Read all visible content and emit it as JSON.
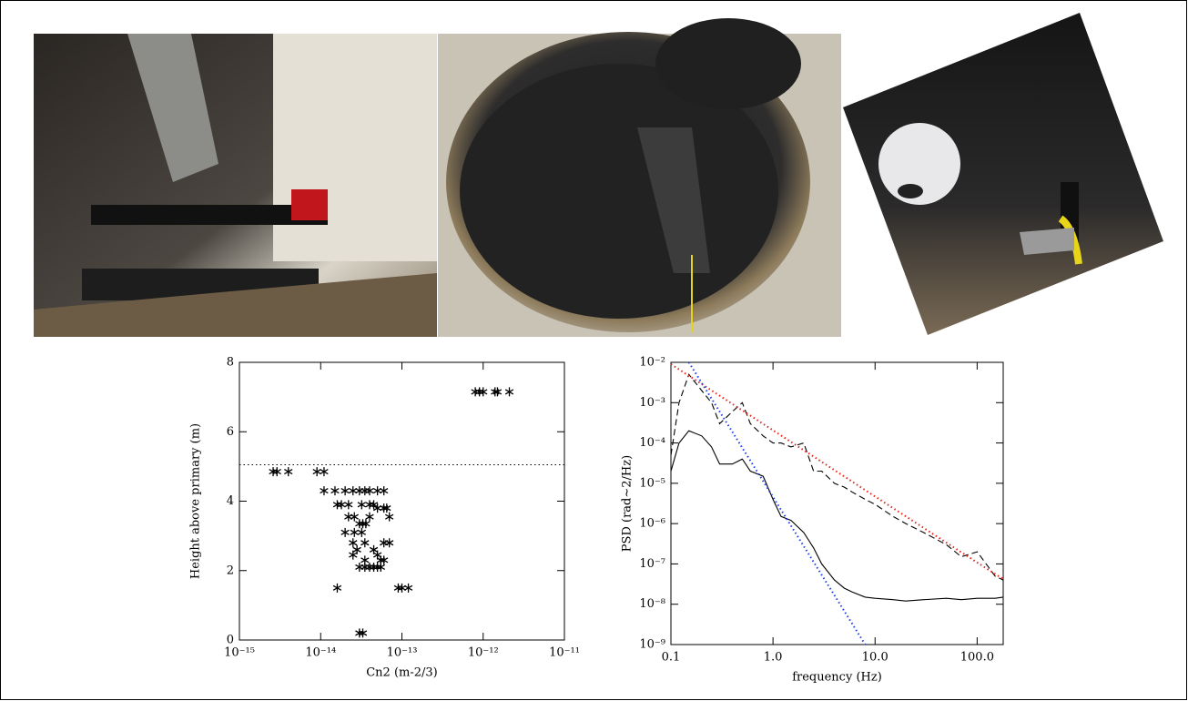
{
  "chart_data": [
    {
      "type": "scatter",
      "xlabel": "Cn2 (m-2/3)",
      "ylabel": "Height above primary (m)",
      "xlog": true,
      "xlim": [
        1e-15,
        1e-11
      ],
      "xticks": [
        {
          "value": 1e-15,
          "label": "10⁻¹⁵"
        },
        {
          "value": 1e-14,
          "label": "10⁻¹⁴"
        },
        {
          "value": 1e-13,
          "label": "10⁻¹³"
        },
        {
          "value": 1e-12,
          "label": "10⁻¹²"
        },
        {
          "value": 1e-11,
          "label": "10⁻¹¹"
        }
      ],
      "ylim": [
        0,
        8
      ],
      "yticks": [
        0,
        2,
        4,
        6,
        8
      ],
      "hline": 5.05,
      "color": "#000000",
      "x": [
        8e-13,
        9e-13,
        1e-12,
        1.4e-12,
        1.5e-12,
        2.1e-12,
        2.6e-15,
        2.9e-15,
        4e-15,
        9e-15,
        1.1e-14,
        1.1e-14,
        1.5e-14,
        2e-14,
        2.5e-14,
        3e-14,
        3.5e-14,
        4e-14,
        5e-14,
        6e-14,
        1.6e-14,
        1.8e-14,
        2.2e-14,
        3.2e-14,
        4e-14,
        4.5e-14,
        5e-14,
        6e-14,
        6.5e-14,
        2.2e-14,
        2.6e-14,
        4e-14,
        7e-14,
        3e-14,
        3.3e-14,
        3.6e-14,
        2e-14,
        2.6e-14,
        3.2e-14,
        2.5e-14,
        3.5e-14,
        6e-14,
        7e-14,
        2.8e-14,
        4.5e-14,
        2.5e-14,
        5e-14,
        3.5e-14,
        5.5e-14,
        6e-14,
        3e-14,
        3.5e-14,
        4e-14,
        4.5e-14,
        5e-14,
        5.5e-14,
        1.6e-14,
        9e-14,
        1e-13,
        1.2e-13,
        3e-14,
        3.3e-14
      ],
      "values": [
        7.15,
        7.15,
        7.15,
        7.15,
        7.15,
        7.15,
        4.85,
        4.85,
        4.85,
        4.85,
        4.85,
        4.3,
        4.3,
        4.3,
        4.3,
        4.3,
        4.3,
        4.3,
        4.3,
        4.3,
        3.9,
        3.9,
        3.9,
        3.9,
        3.9,
        3.9,
        3.8,
        3.8,
        3.8,
        3.55,
        3.55,
        3.55,
        3.55,
        3.35,
        3.35,
        3.35,
        3.1,
        3.1,
        3.1,
        2.8,
        2.8,
        2.8,
        2.8,
        2.6,
        2.6,
        2.45,
        2.45,
        2.3,
        2.3,
        2.3,
        2.1,
        2.1,
        2.1,
        2.1,
        2.1,
        2.1,
        1.5,
        1.5,
        1.5,
        1.5,
        0.2,
        0.2
      ]
    },
    {
      "type": "line",
      "xlabel": "frequency (Hz)",
      "ylabel": "PSD (rad~2/Hz)",
      "xlog": true,
      "ylog": true,
      "xlim": [
        0.1,
        180
      ],
      "xticks": [
        {
          "value": 0.1,
          "label": "0.1"
        },
        {
          "value": 1,
          "label": "1.0"
        },
        {
          "value": 10,
          "label": "10.0"
        },
        {
          "value": 100,
          "label": "100.0"
        }
      ],
      "ylim": [
        1e-09,
        0.01
      ],
      "yticks": [
        {
          "value": 1e-09,
          "label": "10⁻⁹"
        },
        {
          "value": 1e-08,
          "label": "10⁻⁸"
        },
        {
          "value": 1e-07,
          "label": "10⁻⁷"
        },
        {
          "value": 1e-06,
          "label": "10⁻⁶"
        },
        {
          "value": 1e-05,
          "label": "10⁻⁵"
        },
        {
          "value": 0.0001,
          "label": "10⁻⁴"
        },
        {
          "value": 0.001,
          "label": "10⁻³"
        },
        {
          "value": 0.01,
          "label": "10⁻²"
        }
      ],
      "series": [
        {
          "color": "#000000",
          "dash": "solid",
          "x": [
            0.1,
            0.12,
            0.15,
            0.2,
            0.25,
            0.3,
            0.4,
            0.5,
            0.6,
            0.8,
            1,
            1.2,
            1.5,
            2,
            2.5,
            3,
            4,
            5,
            6,
            8,
            10,
            15,
            20,
            30,
            50,
            70,
            100,
            150,
            180
          ],
          "values": [
            2e-05,
            0.0001,
            0.0002,
            0.00015,
            8e-05,
            3e-05,
            3e-05,
            4e-05,
            2e-05,
            1.5e-05,
            4e-06,
            1.5e-06,
            1.2e-06,
            6e-07,
            2.5e-07,
            1e-07,
            4e-08,
            2.5e-08,
            2e-08,
            1.5e-08,
            1.4e-08,
            1.3e-08,
            1.2e-08,
            1.3e-08,
            1.4e-08,
            1.3e-08,
            1.4e-08,
            1.4e-08,
            1.5e-08
          ]
        },
        {
          "color": "#000000",
          "dash": "dashed",
          "x": [
            0.1,
            0.12,
            0.15,
            0.2,
            0.25,
            0.3,
            0.4,
            0.5,
            0.6,
            0.8,
            1,
            1.2,
            1.5,
            2,
            2.5,
            3,
            4,
            5,
            6,
            8,
            10,
            15,
            20,
            30,
            50,
            70,
            100,
            150,
            180
          ],
          "values": [
            5e-05,
            0.001,
            0.005,
            0.002,
            0.001,
            0.0003,
            0.0006,
            0.001,
            0.0003,
            0.00015,
            0.0001,
            0.0001,
            8e-05,
            0.0001,
            2e-05,
            2e-05,
            1e-05,
            8e-06,
            6e-06,
            4e-06,
            3e-06,
            1.5e-06,
            1e-06,
            6e-07,
            3e-07,
            1.5e-07,
            2e-07,
            5e-08,
            4e-08
          ]
        },
        {
          "color": "#e8241c",
          "dash": "dotted",
          "x": [
            0.1,
            1,
            10,
            100,
            180
          ],
          "values": [
            0.009,
            0.000207,
            4.7e-06,
            1.08e-07,
            4.2e-08
          ]
        },
        {
          "color": "#1c3fe8",
          "dash": "dotted",
          "x": [
            0.15,
            1,
            8
          ],
          "values": [
            0.01,
            4.6e-06,
            1e-09
          ]
        }
      ]
    }
  ]
}
